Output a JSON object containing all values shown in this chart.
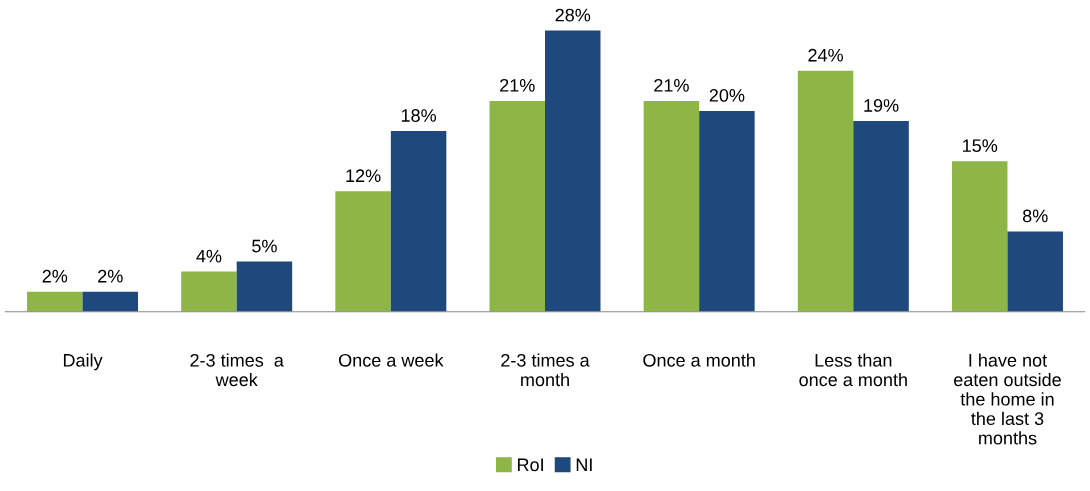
{
  "chart_data": {
    "type": "bar",
    "categories": [
      "Daily",
      "2-3 times  a\nweek",
      "Once a week",
      "2-3 times a\nmonth",
      "Once a month",
      "Less than\nonce a month",
      "I have not\neaten outside\nthe home in\nthe last 3\nmonths"
    ],
    "series": [
      {
        "name": "RoI",
        "color": "#8db646",
        "values": [
          2,
          4,
          12,
          21,
          21,
          24,
          15
        ],
        "value_labels": [
          "2%",
          "4%",
          "12%",
          "21%",
          "21%",
          "24%",
          "15%"
        ]
      },
      {
        "name": "NI",
        "color": "#1f497d",
        "values": [
          2,
          5,
          18,
          28,
          20,
          19,
          8
        ],
        "value_labels": [
          "2%",
          "5%",
          "18%",
          "28%",
          "20%",
          "19%",
          "8%"
        ]
      }
    ],
    "legend": "bottom",
    "grid": false
  }
}
